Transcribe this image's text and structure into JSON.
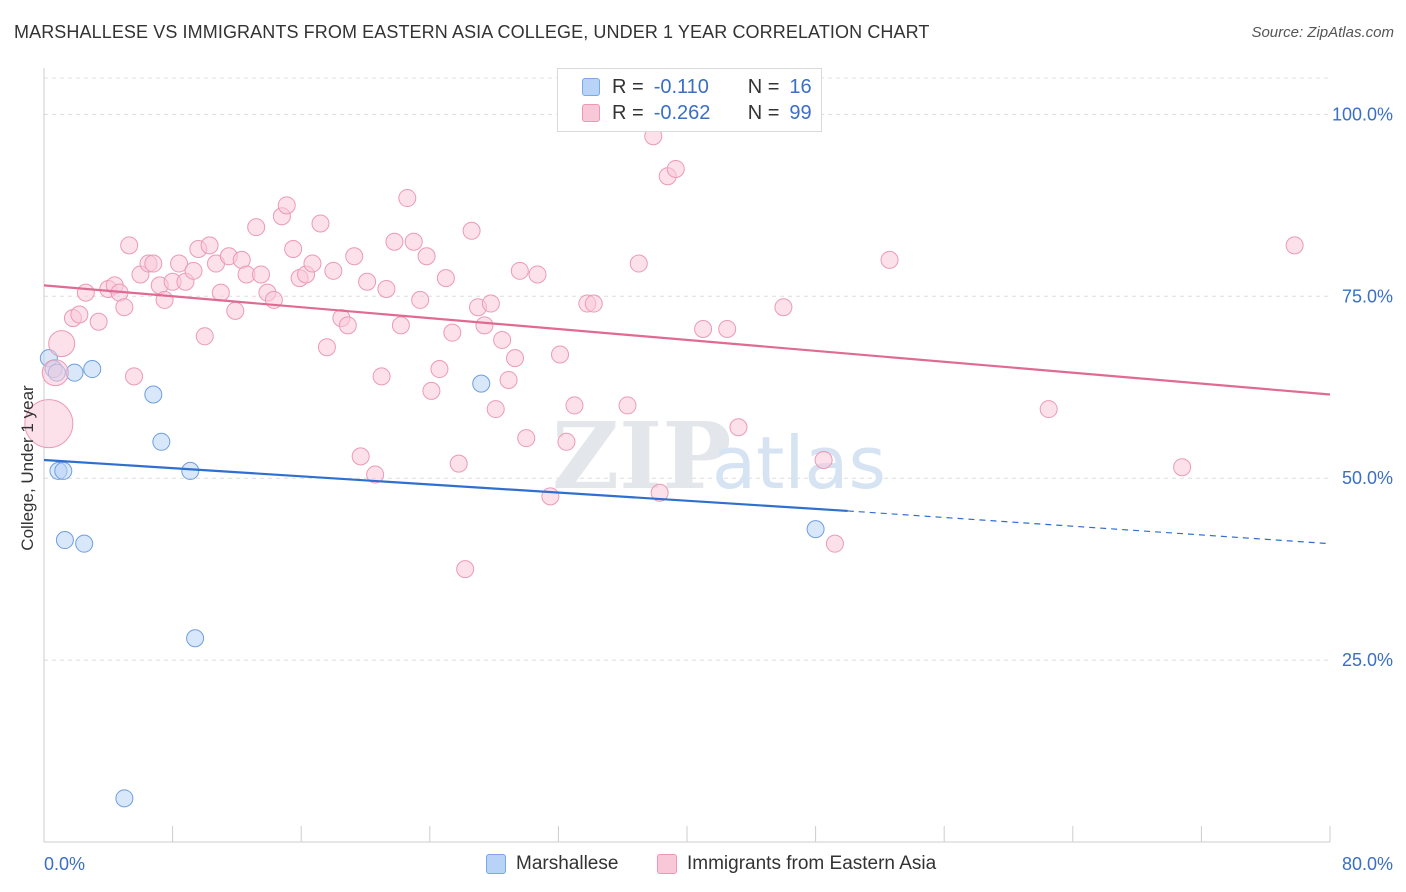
{
  "title": "MARSHALLESE VS IMMIGRANTS FROM EASTERN ASIA COLLEGE, UNDER 1 YEAR CORRELATION CHART",
  "source": "Source: ZipAtlas.com",
  "watermark": {
    "zip": "ZIP",
    "atlas": "atlas"
  },
  "legend": {
    "rows": [
      {
        "r_label": "R =",
        "r_value": "-0.110",
        "n_label": "N =",
        "n_value": "16",
        "color": "#b8d3f5",
        "border": "#7aaae6"
      },
      {
        "r_label": "R =",
        "r_value": "-0.262",
        "n_label": "N =",
        "n_value": "99",
        "color": "#f9c8d8",
        "border": "#ee96b3"
      }
    ]
  },
  "bottom_legend": {
    "items": [
      "Marshallese",
      "Immigrants from Eastern Asia"
    ]
  },
  "chart_data": {
    "type": "scatter",
    "title": "MARSHALLESE VS IMMIGRANTS FROM EASTERN ASIA COLLEGE, UNDER 1 YEAR CORRELATION CHART",
    "xlabel": "",
    "ylabel": "College, Under 1 year",
    "xlim": [
      0,
      80
    ],
    "ylim": [
      0,
      105
    ],
    "x_tick_labels": [
      "0.0%",
      "80.0%"
    ],
    "y_tick_labels": [
      "100.0%",
      "75.0%",
      "50.0%",
      "25.0%"
    ],
    "y_ticks": [
      100,
      75,
      50,
      25
    ],
    "grid": true,
    "legend_position": "top-center",
    "series": [
      {
        "name": "Marshallese",
        "color": "#b8d3f5",
        "stroke": "#6f9fde",
        "line_color": "#2f6fcf",
        "trend": {
          "x0": 0,
          "y0": 52.5,
          "x1": 50,
          "y1": 45.5,
          "dash_x1": 80,
          "dash_y1": 41.0
        },
        "points": [
          {
            "x": 0.3,
            "y": 66.5
          },
          {
            "x": 0.6,
            "y": 65.0
          },
          {
            "x": 0.9,
            "y": 51.0
          },
          {
            "x": 1.2,
            "y": 51.0
          },
          {
            "x": 1.3,
            "y": 41.5
          },
          {
            "x": 1.9,
            "y": 64.5
          },
          {
            "x": 2.5,
            "y": 41.0
          },
          {
            "x": 3.0,
            "y": 65.0
          },
          {
            "x": 6.8,
            "y": 61.5
          },
          {
            "x": 7.3,
            "y": 55.0
          },
          {
            "x": 9.1,
            "y": 51.0
          },
          {
            "x": 9.4,
            "y": 28.0
          },
          {
            "x": 5.0,
            "y": 6.0
          },
          {
            "x": 27.2,
            "y": 63.0
          },
          {
            "x": 48.0,
            "y": 43.0
          },
          {
            "x": 0.8,
            "y": 64.5
          }
        ]
      },
      {
        "name": "Immigrants from Eastern Asia",
        "color": "#f9c8d8",
        "stroke": "#ec9ab6",
        "line_color": "#e06a94",
        "trend": {
          "x0": 0,
          "y0": 76.5,
          "x1": 80,
          "y1": 61.5
        },
        "points": [
          {
            "x": 0.3,
            "y": 57.5,
            "big": 2
          },
          {
            "x": 0.7,
            "y": 64.5,
            "big": 1
          },
          {
            "x": 1.1,
            "y": 68.5,
            "big": 1
          },
          {
            "x": 1.8,
            "y": 72.0
          },
          {
            "x": 2.2,
            "y": 72.5
          },
          {
            "x": 2.6,
            "y": 75.5
          },
          {
            "x": 3.4,
            "y": 71.5
          },
          {
            "x": 4.0,
            "y": 76.0
          },
          {
            "x": 4.4,
            "y": 76.5
          },
          {
            "x": 4.7,
            "y": 75.5
          },
          {
            "x": 5.0,
            "y": 73.5
          },
          {
            "x": 5.3,
            "y": 82.0
          },
          {
            "x": 5.6,
            "y": 64.0
          },
          {
            "x": 6.0,
            "y": 78.0
          },
          {
            "x": 6.5,
            "y": 79.5
          },
          {
            "x": 6.8,
            "y": 79.5
          },
          {
            "x": 7.2,
            "y": 76.5
          },
          {
            "x": 7.5,
            "y": 74.5
          },
          {
            "x": 8.0,
            "y": 77.0
          },
          {
            "x": 8.4,
            "y": 79.5
          },
          {
            "x": 8.8,
            "y": 77.0
          },
          {
            "x": 9.3,
            "y": 78.5
          },
          {
            "x": 9.6,
            "y": 81.5
          },
          {
            "x": 10.0,
            "y": 69.5
          },
          {
            "x": 10.3,
            "y": 82.0
          },
          {
            "x": 10.7,
            "y": 79.5
          },
          {
            "x": 11.0,
            "y": 75.5
          },
          {
            "x": 11.5,
            "y": 80.5
          },
          {
            "x": 11.9,
            "y": 73.0
          },
          {
            "x": 12.3,
            "y": 80.0
          },
          {
            "x": 12.6,
            "y": 78.0
          },
          {
            "x": 13.2,
            "y": 84.5
          },
          {
            "x": 13.5,
            "y": 78.0
          },
          {
            "x": 13.9,
            "y": 75.5
          },
          {
            "x": 14.3,
            "y": 74.5
          },
          {
            "x": 14.8,
            "y": 86.0
          },
          {
            "x": 15.1,
            "y": 87.5
          },
          {
            "x": 15.5,
            "y": 81.5
          },
          {
            "x": 15.9,
            "y": 77.5
          },
          {
            "x": 16.3,
            "y": 78.0
          },
          {
            "x": 16.7,
            "y": 79.5
          },
          {
            "x": 17.2,
            "y": 85.0
          },
          {
            "x": 17.6,
            "y": 68.0
          },
          {
            "x": 18.0,
            "y": 78.5
          },
          {
            "x": 18.5,
            "y": 72.0
          },
          {
            "x": 18.9,
            "y": 71.0
          },
          {
            "x": 19.3,
            "y": 80.5
          },
          {
            "x": 19.7,
            "y": 53.0
          },
          {
            "x": 20.1,
            "y": 77.0
          },
          {
            "x": 20.6,
            "y": 50.5
          },
          {
            "x": 21.0,
            "y": 64.0
          },
          {
            "x": 21.3,
            "y": 76.0
          },
          {
            "x": 21.8,
            "y": 82.5
          },
          {
            "x": 22.2,
            "y": 71.0
          },
          {
            "x": 22.6,
            "y": 88.5
          },
          {
            "x": 23.0,
            "y": 82.5
          },
          {
            "x": 23.4,
            "y": 74.5
          },
          {
            "x": 23.8,
            "y": 80.5
          },
          {
            "x": 24.1,
            "y": 62.0
          },
          {
            "x": 24.6,
            "y": 65.0
          },
          {
            "x": 25.0,
            "y": 77.5
          },
          {
            "x": 25.4,
            "y": 70.0
          },
          {
            "x": 25.8,
            "y": 52.0
          },
          {
            "x": 26.2,
            "y": 37.5
          },
          {
            "x": 26.6,
            "y": 84.0
          },
          {
            "x": 27.0,
            "y": 73.5
          },
          {
            "x": 27.4,
            "y": 71.0
          },
          {
            "x": 27.8,
            "y": 74.0
          },
          {
            "x": 28.1,
            "y": 59.5
          },
          {
            "x": 28.5,
            "y": 69.0
          },
          {
            "x": 28.9,
            "y": 63.5
          },
          {
            "x": 29.3,
            "y": 66.5
          },
          {
            "x": 29.6,
            "y": 78.5
          },
          {
            "x": 30.0,
            "y": 55.5
          },
          {
            "x": 30.7,
            "y": 78.0
          },
          {
            "x": 31.5,
            "y": 47.5
          },
          {
            "x": 32.1,
            "y": 67.0
          },
          {
            "x": 32.5,
            "y": 55.0
          },
          {
            "x": 33.0,
            "y": 60.0
          },
          {
            "x": 33.8,
            "y": 74.0
          },
          {
            "x": 34.2,
            "y": 74.0
          },
          {
            "x": 36.3,
            "y": 60.0
          },
          {
            "x": 37.0,
            "y": 79.5
          },
          {
            "x": 37.9,
            "y": 97.0
          },
          {
            "x": 38.3,
            "y": 48.0
          },
          {
            "x": 38.8,
            "y": 91.5
          },
          {
            "x": 39.3,
            "y": 92.5
          },
          {
            "x": 41.0,
            "y": 70.5
          },
          {
            "x": 42.5,
            "y": 70.5
          },
          {
            "x": 43.2,
            "y": 57.0
          },
          {
            "x": 46.0,
            "y": 73.5
          },
          {
            "x": 48.5,
            "y": 52.5
          },
          {
            "x": 49.2,
            "y": 41.0
          },
          {
            "x": 52.6,
            "y": 80.0
          },
          {
            "x": 62.5,
            "y": 59.5
          },
          {
            "x": 70.8,
            "y": 51.5
          },
          {
            "x": 77.8,
            "y": 82.0
          }
        ]
      }
    ]
  }
}
